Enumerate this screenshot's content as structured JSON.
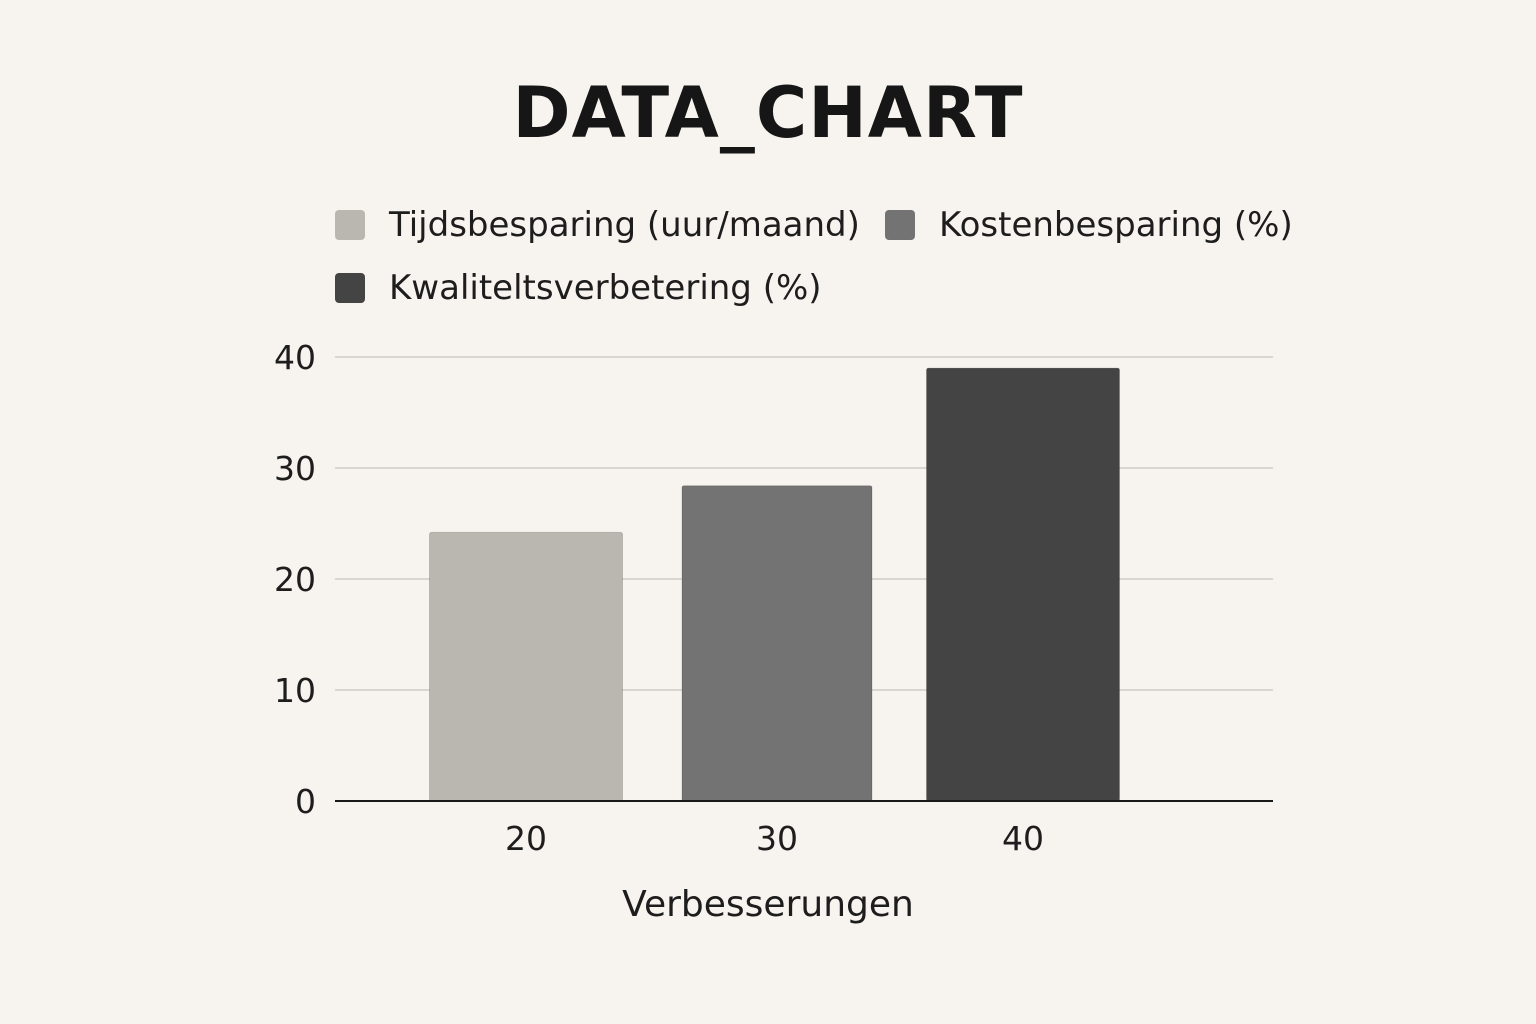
{
  "chart_data": {
    "type": "bar",
    "title": "DATA_CHART",
    "xlabel": "Verbesserungen",
    "ylabel": "",
    "ylim": [
      0,
      40
    ],
    "yticks": [
      0,
      10,
      20,
      30,
      40
    ],
    "grid": true,
    "legend_placement": "top",
    "categories": [
      "20",
      "30",
      "40"
    ],
    "series": [
      {
        "name": "Tijdsbesparing (uur/maand)",
        "color": "#bab7b1",
        "values": [
          24.2,
          null,
          null
        ]
      },
      {
        "name": "Kostenbesparing (%)",
        "color": "#737373",
        "values": [
          null,
          28.4,
          null
        ]
      },
      {
        "name": "Kwaliteltsverbetering (%)",
        "color": "#444444",
        "values": [
          null,
          null,
          39
        ]
      }
    ]
  }
}
